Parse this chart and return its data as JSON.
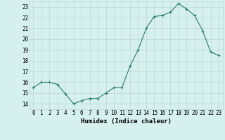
{
  "x": [
    0,
    1,
    2,
    3,
    4,
    5,
    6,
    7,
    8,
    9,
    10,
    11,
    12,
    13,
    14,
    15,
    16,
    17,
    18,
    19,
    20,
    21,
    22,
    23
  ],
  "y": [
    15.5,
    16.0,
    16.0,
    15.8,
    14.9,
    14.0,
    14.3,
    14.5,
    14.5,
    15.0,
    15.5,
    15.5,
    17.5,
    19.0,
    21.0,
    22.1,
    22.2,
    22.5,
    23.3,
    22.8,
    22.2,
    20.8,
    18.8,
    18.5
  ],
  "line_color": "#2a7a6a",
  "marker": "+",
  "marker_size": 3,
  "bg_color": "#d6f0ee",
  "grid_color": "#b8d8d5",
  "xlabel": "Humidex (Indice chaleur)",
  "xlim": [
    -0.5,
    23.5
  ],
  "ylim": [
    13.5,
    23.5
  ],
  "yticks": [
    14,
    15,
    16,
    17,
    18,
    19,
    20,
    21,
    22,
    23
  ],
  "xticks": [
    0,
    1,
    2,
    3,
    4,
    5,
    6,
    7,
    8,
    9,
    10,
    11,
    12,
    13,
    14,
    15,
    16,
    17,
    18,
    19,
    20,
    21,
    22,
    23
  ],
  "tick_fontsize": 5.5,
  "label_fontsize": 6.5
}
